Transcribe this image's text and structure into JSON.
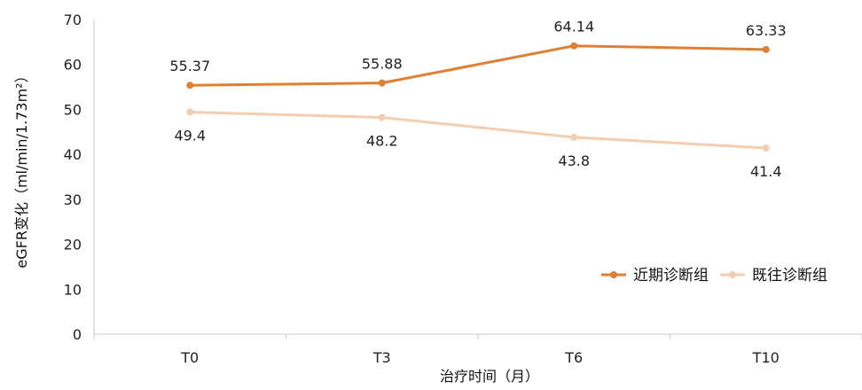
{
  "chart_data": {
    "type": "line",
    "categories": [
      "T0",
      "T3",
      "T6",
      "T10"
    ],
    "series": [
      {
        "name": "近期诊断组",
        "values": [
          55.37,
          55.88,
          64.14,
          63.33
        ],
        "labels": [
          "55.37",
          "55.88",
          "64.14",
          "63.33"
        ],
        "color": "#E07F32",
        "label_position": "above"
      },
      {
        "name": "既往诊断组",
        "values": [
          49.4,
          48.2,
          43.8,
          41.4
        ],
        "labels": [
          "49.4",
          "48.2",
          "43.8",
          "41.4"
        ],
        "color": "#F3CDB0",
        "label_position": "below"
      }
    ],
    "xlabel": "治疗时间（月）",
    "ylabel": "eGFR变化（ml/min/1.73m²）",
    "ylim": [
      0,
      70
    ],
    "yticks": [
      "0",
      "10",
      "20",
      "30",
      "40",
      "50",
      "60",
      "70"
    ],
    "grid": false,
    "legend_position": "bottom-right"
  }
}
